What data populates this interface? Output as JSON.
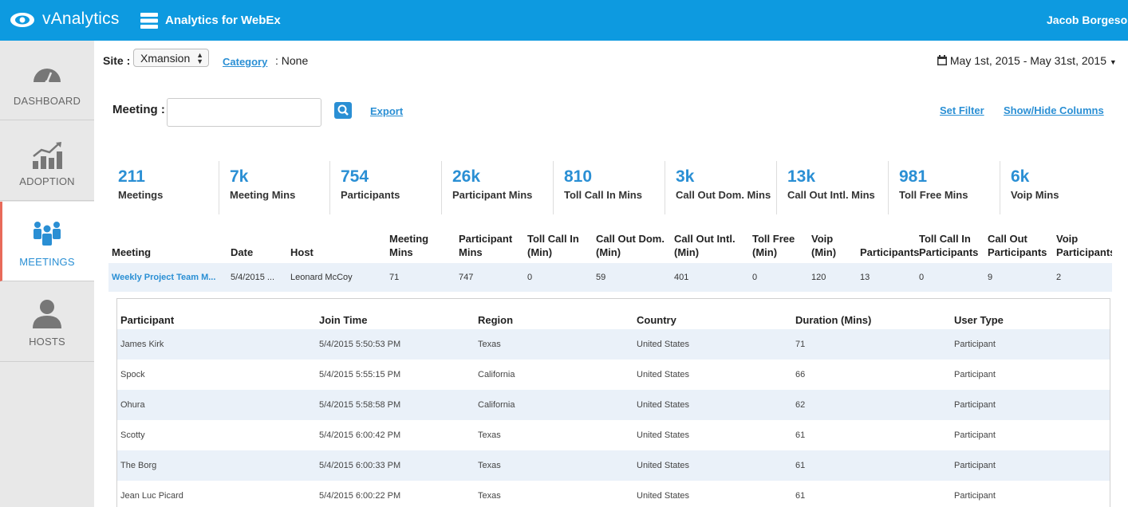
{
  "header": {
    "brand": "vAnalytics",
    "product": "Analytics for WebEx",
    "user": "Jacob Borgeson"
  },
  "sidebar": {
    "items": [
      {
        "label": "DASHBOARD",
        "icon": "gauge-icon",
        "active": false
      },
      {
        "label": "ADOPTION",
        "icon": "trend-chart-icon",
        "active": false
      },
      {
        "label": "MEETINGS",
        "icon": "people-icon",
        "active": true
      },
      {
        "label": "HOSTS",
        "icon": "person-icon",
        "active": false
      }
    ]
  },
  "filters": {
    "site_label": "Site :",
    "site_value": "Xmansion",
    "category_link": "Category",
    "category_value": ": None",
    "date_range": "May 1st, 2015 - May 31st, 2015"
  },
  "search": {
    "meeting_label": "Meeting :",
    "meeting_value": "",
    "export": "Export",
    "set_filter": "Set Filter",
    "show_hide": "Show/Hide Columns"
  },
  "stats": [
    {
      "value": "211",
      "label": "Meetings"
    },
    {
      "value": "7k",
      "label": "Meeting Mins"
    },
    {
      "value": "754",
      "label": "Participants"
    },
    {
      "value": "26k",
      "label": "Participant Mins"
    },
    {
      "value": "810",
      "label": "Toll Call In Mins"
    },
    {
      "value": "3k",
      "label": "Call Out Dom. Mins"
    },
    {
      "value": "13k",
      "label": "Call Out Intl. Mins"
    },
    {
      "value": "981",
      "label": "Toll Free Mins"
    },
    {
      "value": "6k",
      "label": "Voip Mins"
    }
  ],
  "meetings_table": {
    "headers": [
      {
        "l1": "",
        "l2": "Meeting"
      },
      {
        "l1": "",
        "l2": "Date"
      },
      {
        "l1": "",
        "l2": "Host"
      },
      {
        "l1": "Meeting",
        "l2": "Mins"
      },
      {
        "l1": "Participant",
        "l2": "Mins"
      },
      {
        "l1": "Toll Call In",
        "l2": "(Min)"
      },
      {
        "l1": "Call Out Dom.",
        "l2": "(Min)"
      },
      {
        "l1": "Call Out Intl.",
        "l2": "(Min)"
      },
      {
        "l1": "Toll Free",
        "l2": "(Min)"
      },
      {
        "l1": "Voip",
        "l2": "(Min)"
      },
      {
        "l1": "",
        "l2": "Participants"
      },
      {
        "l1": "Toll Call In",
        "l2": "Participants"
      },
      {
        "l1": "Call Out",
        "l2": "Participants"
      },
      {
        "l1": "Voip",
        "l2": "Participants"
      }
    ],
    "row": [
      "Weekly Project Team M...",
      "5/4/2015 ...",
      "Leonard McCoy",
      "71",
      "747",
      "0",
      "59",
      "401",
      "0",
      "120",
      "13",
      "0",
      "9",
      "2"
    ]
  },
  "participants_table": {
    "headers": [
      "Participant",
      "Join Time",
      "Region",
      "Country",
      "Duration (Mins)",
      "User Type"
    ],
    "rows": [
      [
        "James Kirk",
        "5/4/2015 5:50:53 PM",
        "Texas",
        "United States",
        "71",
        "Participant"
      ],
      [
        "Spock",
        "5/4/2015 5:55:15 PM",
        "California",
        "United States",
        "66",
        "Participant"
      ],
      [
        "Ohura",
        "5/4/2015 5:58:58 PM",
        "California",
        "United States",
        "62",
        "Participant"
      ],
      [
        "Scotty",
        "5/4/2015 6:00:42 PM",
        "Texas",
        "United States",
        "61",
        "Participant"
      ],
      [
        "The Borg",
        "5/4/2015 6:00:33 PM",
        "Texas",
        "United States",
        "61",
        "Participant"
      ],
      [
        "Jean Luc Picard",
        "5/4/2015 6:00:22 PM",
        "Texas",
        "United States",
        "61",
        "Participant"
      ]
    ]
  },
  "colors": {
    "header_bg": "#0d9ae0",
    "accent": "#2a8fd4",
    "active_marker": "#e86a5a",
    "row_highlight": "#eaf1f9"
  }
}
